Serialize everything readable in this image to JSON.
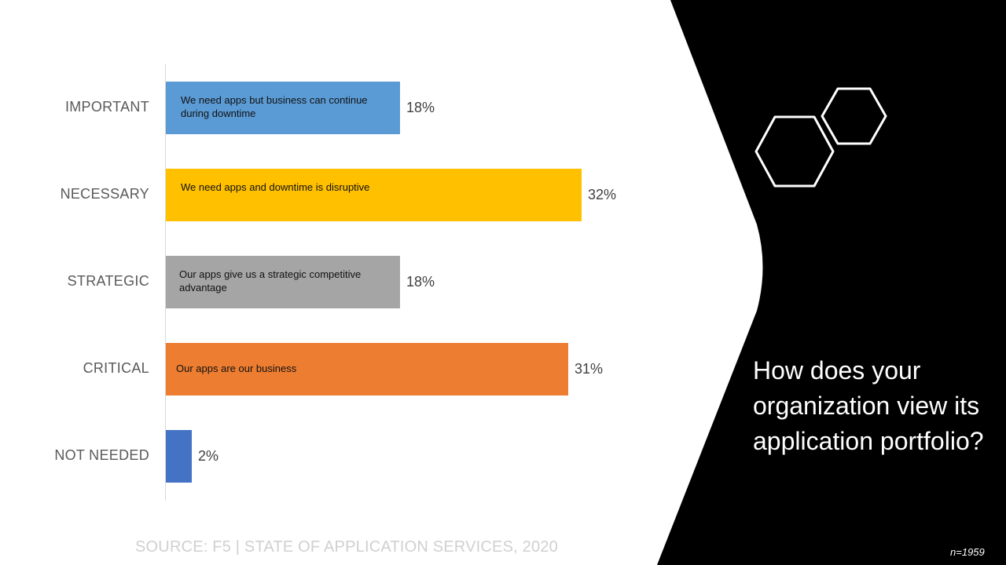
{
  "chart_data": {
    "type": "bar",
    "orientation": "horizontal",
    "categories": [
      "IMPORTANT",
      "NECESSARY",
      "STRATEGIC",
      "CRITICAL",
      "NOT NEEDED"
    ],
    "values": [
      18,
      32,
      18,
      31,
      2
    ],
    "value_labels": [
      "18%",
      "32%",
      "18%",
      "31%",
      "2%"
    ],
    "bar_descriptions": [
      "We need apps but business can continue during downtime",
      "We need apps and downtime is disruptive",
      "Our apps give us a  strategic competitive advantage",
      "Our apps are our business",
      ""
    ],
    "colors": [
      "#5b9bd5",
      "#ffc000",
      "#a5a5a5",
      "#ed7d31",
      "#4472c4"
    ],
    "xlim": [
      0,
      35
    ],
    "grid": false
  },
  "question": "How does your organization view its application portfolio?",
  "source": "SOURCE: F5 | STATE OF APPLICATION SERVICES, 2020",
  "sample_size": "n=1959",
  "colors": {
    "panel": "#000000",
    "hex_outline": "#ffffff",
    "source_text": "#d0d0d0"
  },
  "icons": [
    "hexagon-outline-icon",
    "hexagon-outline-icon"
  ]
}
